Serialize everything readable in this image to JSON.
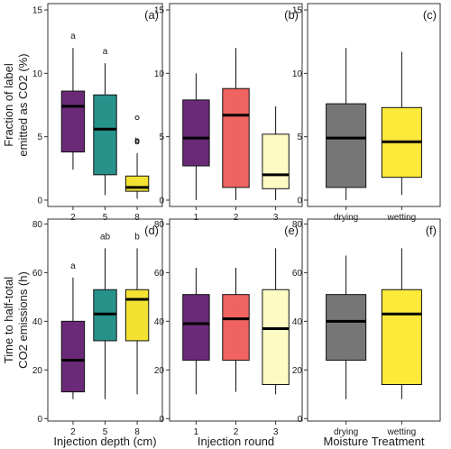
{
  "chart_data": [
    {
      "type": "box",
      "panel_label": "(a)",
      "ylabel_lines": [
        "Fraction of label",
        "emitted as CO2 (%)"
      ],
      "xlabel": "",
      "ylim": [
        -0.5,
        15.5
      ],
      "yticks": [
        0,
        5,
        10,
        15
      ],
      "categories": [
        "2",
        "5",
        "8"
      ],
      "colors": [
        "#6a2a78",
        "#26928a",
        "#f4e233"
      ],
      "boxes": [
        {
          "whisker_low": 2.4,
          "q1": 3.8,
          "median": 7.4,
          "q3": 8.6,
          "whisker_high": 12.0,
          "outliers": []
        },
        {
          "whisker_low": 0.4,
          "q1": 2.0,
          "median": 5.6,
          "q3": 8.3,
          "whisker_high": 10.8,
          "outliers": []
        },
        {
          "whisker_low": 0.1,
          "q1": 0.7,
          "median": 1.0,
          "q3": 1.9,
          "whisker_high": 3.7,
          "outliers": [
            4.6,
            4.7,
            6.5
          ]
        }
      ],
      "letters": [
        "a",
        "a",
        "b"
      ]
    },
    {
      "type": "box",
      "panel_label": "(b)",
      "ylabel_lines": [],
      "xlabel": "",
      "ylim": [
        -0.5,
        15.5
      ],
      "yticks": [
        0,
        5,
        10,
        15
      ],
      "categories": [
        "1",
        "2",
        "3"
      ],
      "colors": [
        "#6a2a78",
        "#ef6460",
        "#fdfac4"
      ],
      "boxes": [
        {
          "whisker_low": 0.0,
          "q1": 2.7,
          "median": 4.9,
          "q3": 7.9,
          "whisker_high": 10.0,
          "outliers": []
        },
        {
          "whisker_low": 0.0,
          "q1": 1.0,
          "median": 6.7,
          "q3": 8.8,
          "whisker_high": 12.0,
          "outliers": []
        },
        {
          "whisker_low": 0.0,
          "q1": 0.9,
          "median": 2.0,
          "q3": 5.2,
          "whisker_high": 7.4,
          "outliers": []
        }
      ],
      "letters": []
    },
    {
      "type": "box",
      "panel_label": "(c)",
      "ylabel_lines": [],
      "xlabel": "",
      "ylim": [
        -0.5,
        15.5
      ],
      "yticks": [
        0,
        5,
        10,
        15
      ],
      "categories": [
        "drying",
        "wetting"
      ],
      "colors": [
        "#767676",
        "#fde93a"
      ],
      "boxes": [
        {
          "whisker_low": 0.0,
          "q1": 1.0,
          "median": 4.9,
          "q3": 7.6,
          "whisker_high": 12.0,
          "outliers": []
        },
        {
          "whisker_low": 0.4,
          "q1": 1.8,
          "median": 4.6,
          "q3": 7.3,
          "whisker_high": 11.7,
          "outliers": []
        }
      ],
      "letters": []
    },
    {
      "type": "box",
      "panel_label": "(d)",
      "ylabel_lines": [
        "Time to half-total",
        "CO2 emissions (h)"
      ],
      "xlabel": "Injection depth (cm)",
      "ylim": [
        -1,
        82
      ],
      "yticks": [
        0,
        20,
        40,
        60,
        80
      ],
      "categories": [
        "2",
        "5",
        "8"
      ],
      "colors": [
        "#6a2a78",
        "#26928a",
        "#f4e233"
      ],
      "boxes": [
        {
          "whisker_low": 8,
          "q1": 11,
          "median": 24,
          "q3": 40,
          "whisker_high": 58,
          "outliers": []
        },
        {
          "whisker_low": 8,
          "q1": 32,
          "median": 43,
          "q3": 53,
          "whisker_high": 70,
          "outliers": []
        },
        {
          "whisker_low": 10,
          "q1": 32,
          "median": 49,
          "q3": 53,
          "whisker_high": 70,
          "outliers": []
        }
      ],
      "letters": [
        "a",
        "ab",
        "b"
      ]
    },
    {
      "type": "box",
      "panel_label": "(e)",
      "ylabel_lines": [],
      "xlabel": "Injection round",
      "ylim": [
        -1,
        82
      ],
      "yticks": [
        0,
        20,
        40,
        60,
        80
      ],
      "categories": [
        "1",
        "2",
        "3"
      ],
      "colors": [
        "#6a2a78",
        "#ef6460",
        "#fdfac4"
      ],
      "boxes": [
        {
          "whisker_low": 10,
          "q1": 24,
          "median": 39,
          "q3": 51,
          "whisker_high": 62,
          "outliers": []
        },
        {
          "whisker_low": 11,
          "q1": 24,
          "median": 41,
          "q3": 51,
          "whisker_high": 62,
          "outliers": []
        },
        {
          "whisker_low": 10,
          "q1": 14,
          "median": 37,
          "q3": 53,
          "whisker_high": 70,
          "outliers": []
        }
      ],
      "letters": []
    },
    {
      "type": "box",
      "panel_label": "(f)",
      "ylabel_lines": [],
      "xlabel": "Moisture Treatment",
      "ylim": [
        -1,
        82
      ],
      "yticks": [
        0,
        20,
        40,
        60,
        80
      ],
      "categories": [
        "drying",
        "wetting"
      ],
      "colors": [
        "#767676",
        "#fde93a"
      ],
      "boxes": [
        {
          "whisker_low": 8,
          "q1": 24,
          "median": 40,
          "q3": 51,
          "whisker_high": 67,
          "outliers": []
        },
        {
          "whisker_low": 8,
          "q1": 14,
          "median": 43,
          "q3": 53,
          "whisker_high": 70,
          "outliers": []
        }
      ],
      "letters": []
    }
  ]
}
